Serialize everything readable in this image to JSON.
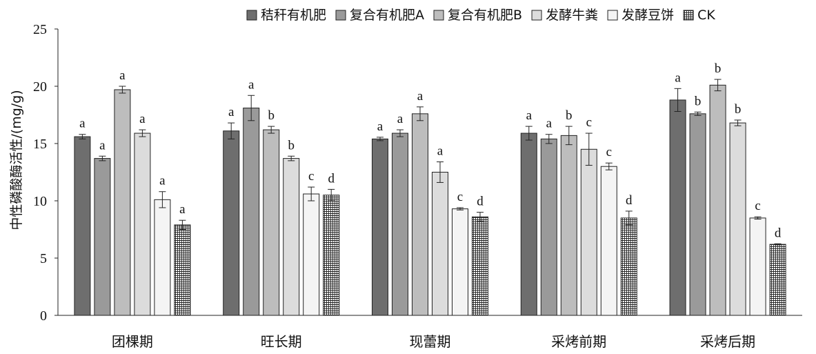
{
  "chart_data": {
    "type": "bar",
    "title": "",
    "ylabel": "中性磷酸酶活性/(mg/g)",
    "xlabel": "",
    "ylim": [
      0,
      25
    ],
    "yticks": [
      "0",
      "5",
      "10",
      "15",
      "20",
      "25"
    ],
    "categories": [
      "团棵期",
      "旺长期",
      "现蕾期",
      "采烤前期",
      "采烤后期"
    ],
    "legend_position": "top-right",
    "series": [
      {
        "name": "秸秆有机肥",
        "color": "#6e6e6e",
        "values": [
          15.6,
          16.1,
          15.4,
          15.9,
          18.8
        ],
        "errors": [
          0.2,
          0.7,
          0.15,
          0.6,
          1.0
        ],
        "labels": [
          "a",
          "a",
          "a",
          "a",
          "a"
        ]
      },
      {
        "name": "复合有机肥A",
        "color": "#9a9a9a",
        "values": [
          13.7,
          18.1,
          15.9,
          15.4,
          17.6
        ],
        "errors": [
          0.2,
          1.1,
          0.3,
          0.4,
          0.15
        ],
        "labels": [
          "a",
          "a",
          "a",
          "a",
          "b"
        ]
      },
      {
        "name": "复合有机肥B",
        "color": "#bdbdbd",
        "values": [
          19.7,
          16.2,
          17.6,
          15.7,
          20.1
        ],
        "errors": [
          0.3,
          0.3,
          0.6,
          0.8,
          0.5
        ],
        "labels": [
          "a",
          "b",
          "a",
          "b",
          "b"
        ]
      },
      {
        "name": "发酵牛粪",
        "color": "#dcdcdc",
        "values": [
          15.9,
          13.7,
          12.5,
          14.5,
          16.8
        ],
        "errors": [
          0.3,
          0.2,
          0.9,
          1.4,
          0.25
        ],
        "labels": [
          "a",
          "b",
          "a",
          "c",
          "b"
        ]
      },
      {
        "name": "发酵豆饼",
        "color": "#f4f4f4",
        "values": [
          10.1,
          10.6,
          9.3,
          13.0,
          8.5
        ],
        "errors": [
          0.7,
          0.6,
          0.1,
          0.3,
          0.1
        ],
        "labels": [
          "a",
          "c",
          "c",
          "c",
          "c"
        ]
      },
      {
        "name": "CK",
        "color": "#ffffff",
        "pattern": "grid",
        "values": [
          7.9,
          10.5,
          8.6,
          8.5,
          6.2
        ],
        "errors": [
          0.4,
          0.5,
          0.4,
          0.6,
          0.05
        ],
        "labels": [
          "a",
          "d",
          "d",
          "d",
          "d"
        ]
      }
    ]
  }
}
